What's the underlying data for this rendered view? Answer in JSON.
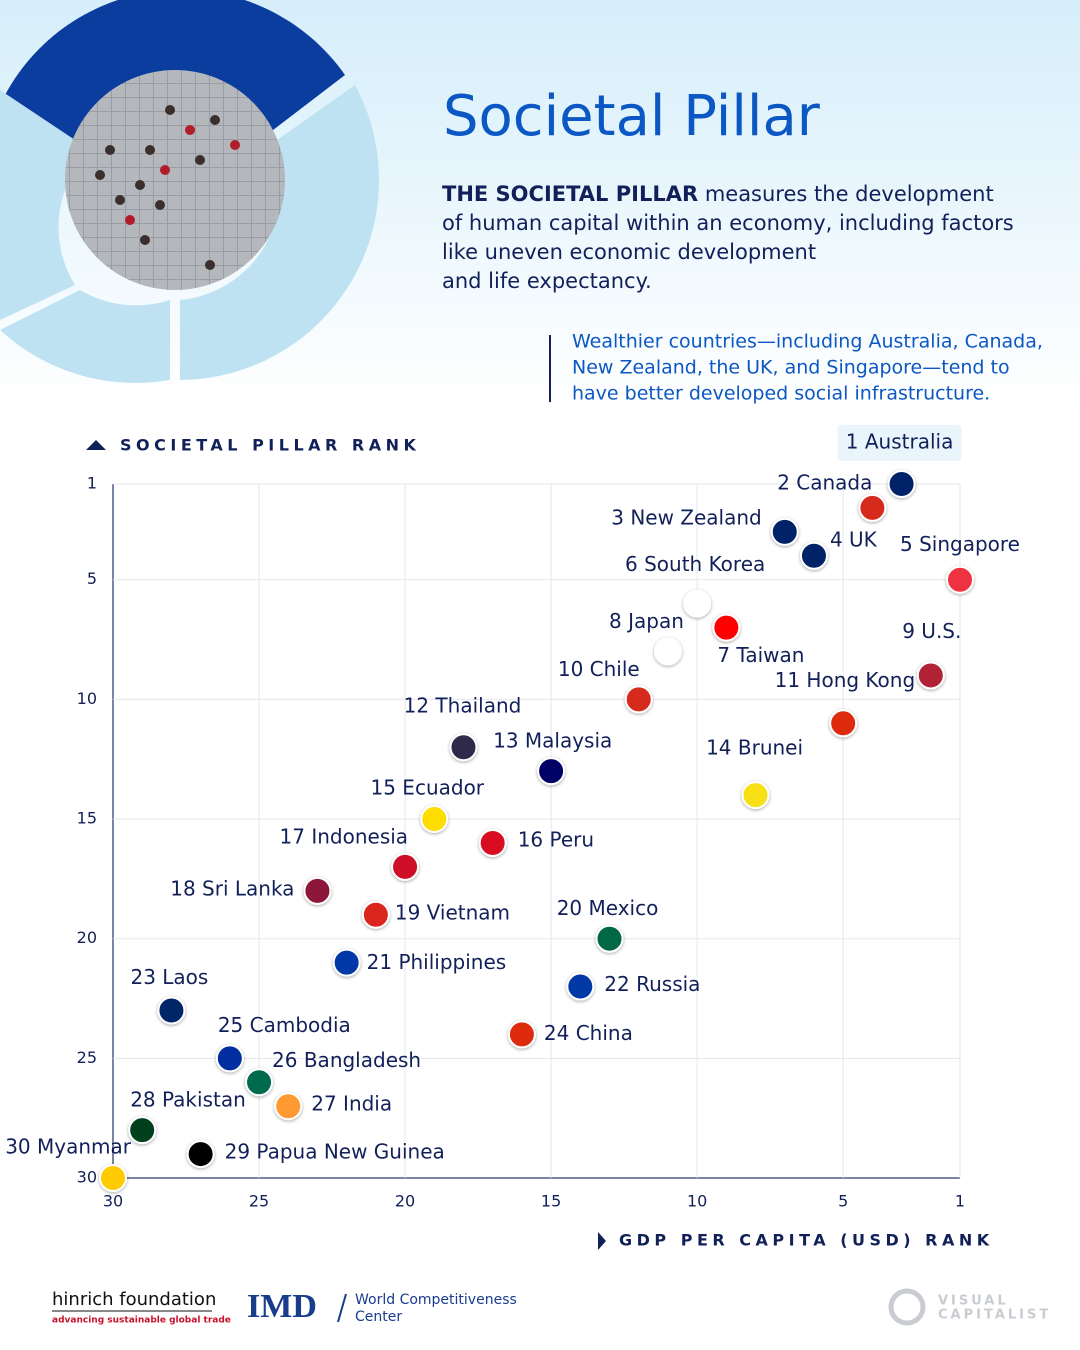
{
  "title": "Societal Pillar",
  "description_lead": "THE SOCIETAL PILLAR",
  "description_lines": [
    " measures the development",
    "of human capital within an economy, including factors",
    "like uneven economic development",
    "and life expectancy."
  ],
  "note_lines": [
    "Wealthier countries—including Australia, Canada,",
    "New Zealand, the UK, and Singapore—tend to",
    "have better developed social infrastructure."
  ],
  "footer": {
    "hinrich": "hinrich foundation",
    "hinrich_tagline": "advancing sustainable global trade",
    "imd": "IMD",
    "imd_line1": "World Competitiveness",
    "imd_line2": "Center",
    "vc_line1": "VISUAL",
    "vc_line2": "CAPITALIST"
  },
  "chart_data": {
    "type": "scatter",
    "y_label": "SOCIETAL PILLAR RANK",
    "x_label": "GDP PER CAPITA (USD) RANK",
    "labels": [
      "1 Australia",
      "2 Canada",
      "3 New Zealand",
      "4 UK",
      "5 Singapore",
      "6 South Korea",
      "7 Taiwan",
      "8 Japan",
      "9 U.S.",
      "10 Chile",
      "11 Hong Kong",
      "12 Thailand",
      "13 Malaysia",
      "14 Brunei",
      "15 Ecuador",
      "16 Peru",
      "17 Indonesia",
      "18 Sri Lanka",
      "19 Vietnam",
      "20 Mexico",
      "21 Philippines",
      "22 Russia",
      "23 Laos",
      "24 China",
      "25 Cambodia",
      "26 Bangladesh",
      "27 India",
      "28 Pakistan",
      "29 Papua New Guinea",
      "30 Myanmar"
    ],
    "x": [
      3,
      4,
      7,
      6,
      1,
      10,
      9,
      11,
      2,
      12,
      5,
      18,
      15,
      8,
      19,
      17,
      20,
      23,
      21,
      13,
      22,
      14,
      28,
      16,
      26,
      25,
      24,
      29,
      27,
      30
    ],
    "y": [
      1,
      2,
      3,
      4,
      5,
      6,
      7,
      8,
      9,
      10,
      11,
      12,
      13,
      14,
      15,
      16,
      17,
      18,
      19,
      20,
      21,
      22,
      23,
      24,
      25,
      26,
      27,
      28,
      29,
      30
    ],
    "colors": [
      "#012169",
      "#d52b1e",
      "#012169",
      "#012169",
      "#ef3340",
      "#ffffff",
      "#fe0000",
      "#ffffff",
      "#b22234",
      "#d52b1e",
      "#de2910",
      "#2d2a4a",
      "#010066",
      "#f7e017",
      "#ffdd00",
      "#d91023",
      "#ce1126",
      "#8d153a",
      "#da251d",
      "#006847",
      "#0038a8",
      "#0039a6",
      "#002868",
      "#de2910",
      "#032ea1",
      "#006a4e",
      "#ff9933",
      "#01411c",
      "#000000",
      "#fecb00"
    ],
    "xlim": [
      30,
      1
    ],
    "xticks": [
      30,
      25,
      20,
      15,
      10,
      5,
      1
    ],
    "ylim": [
      1,
      30
    ],
    "yticks": [
      1,
      5,
      10,
      15,
      20,
      25,
      30
    ],
    "grid": true
  }
}
